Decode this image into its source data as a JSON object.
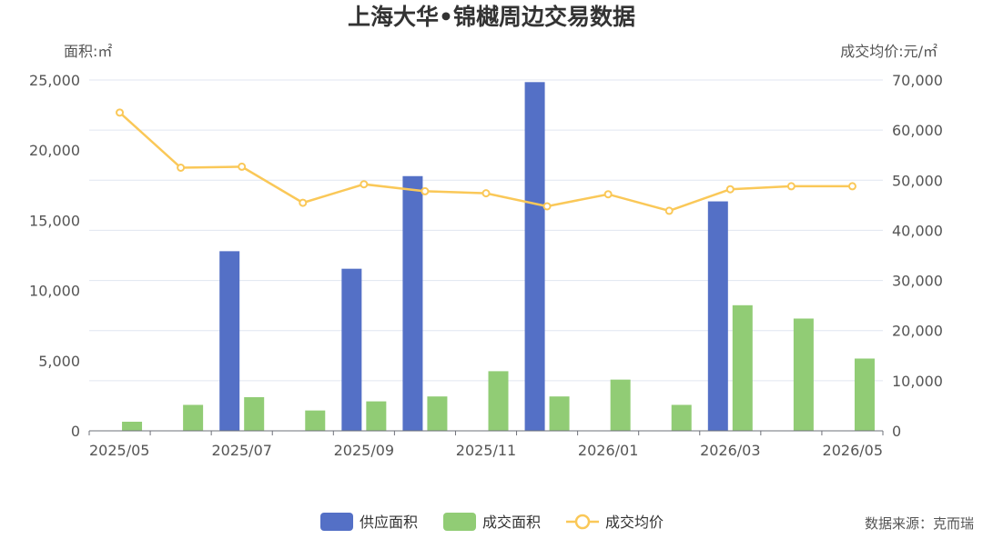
{
  "chart_data": {
    "type": "bar",
    "title": "上海大华•锦樾周边交易数据",
    "y_left_label": "面积:㎡",
    "y_right_label": "成交均价:元/㎡",
    "y_left_range": [
      0,
      25000
    ],
    "y_right_range": [
      0,
      70000
    ],
    "y_left_ticks": [
      "0",
      "5,000",
      "10,000",
      "15,000",
      "20,000",
      "25,000"
    ],
    "y_right_ticks": [
      "0",
      "10,000",
      "20,000",
      "30,000",
      "40,000",
      "50,000",
      "60,000",
      "70,000"
    ],
    "categories": [
      "2025/05",
      "2025/06",
      "2025/07",
      "2025/08",
      "2025/09",
      "2025/10",
      "2025/11",
      "2025/12",
      "2026/01",
      "2026/02",
      "2026/03",
      "2026/04",
      "2026/05"
    ],
    "x_tick_labels": [
      "2025/05",
      "2025/07",
      "2025/09",
      "2025/11",
      "2026/01",
      "2026/03",
      "2026/05"
    ],
    "series": [
      {
        "name": "供应面积",
        "type": "bar",
        "axis": "left",
        "color": "#5470c6",
        "values": [
          0,
          0,
          12800,
          0,
          11550,
          18150,
          0,
          24850,
          0,
          0,
          16350,
          0,
          0
        ]
      },
      {
        "name": "成交面积",
        "type": "bar",
        "axis": "left",
        "color": "#91cc75",
        "values": [
          650,
          1850,
          2400,
          1450,
          2100,
          2450,
          4250,
          2450,
          3650,
          1850,
          8950,
          8000,
          5150
        ]
      },
      {
        "name": "成交均价",
        "type": "line",
        "axis": "right",
        "color": "#fac858",
        "values": [
          63500,
          52500,
          52700,
          45500,
          49200,
          47800,
          47400,
          44800,
          47200,
          43900,
          48200,
          48800,
          48800
        ]
      }
    ],
    "grid": true,
    "legend_position": "bottom-center"
  },
  "source": "数据来源：克而瑞"
}
